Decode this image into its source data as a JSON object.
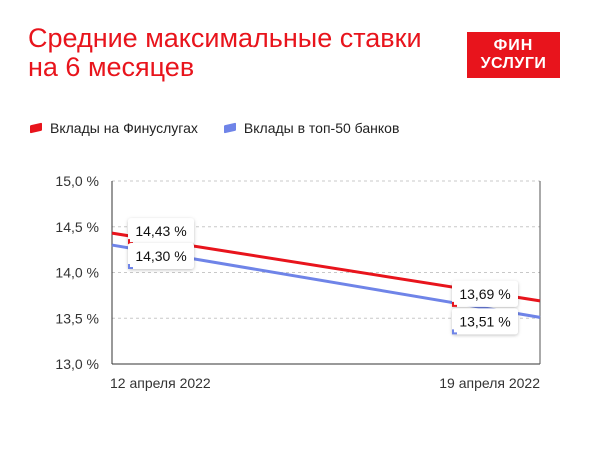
{
  "header": {
    "title_line1": "Средние максимальные ставки",
    "title_line2": "на 6 месяцев"
  },
  "logo": {
    "line1": "ФИН",
    "line2": "УСЛУГИ"
  },
  "colors": {
    "accent": "#e8141c",
    "series2": "#6f84e8"
  },
  "chart_data": {
    "type": "line",
    "x": [
      "12 апреля 2022",
      "19 апреля 2022"
    ],
    "ylim": [
      13.0,
      15.0
    ],
    "yticks": [
      "15,0 %",
      "14,5 %",
      "14,0 %",
      "13,5 %",
      "13,0 %"
    ],
    "grid": true,
    "legend": "top-left",
    "series": [
      {
        "name": "Вклады на Финуслугах",
        "color": "#e8141c",
        "values": [
          14.43,
          13.69
        ],
        "labels": [
          "14,43 %",
          "13,69 %"
        ]
      },
      {
        "name": "Вклады в топ-50 банков",
        "color": "#6f84e8",
        "values": [
          14.3,
          13.51
        ],
        "labels": [
          "14,30 %",
          "13,51 %"
        ]
      }
    ]
  }
}
